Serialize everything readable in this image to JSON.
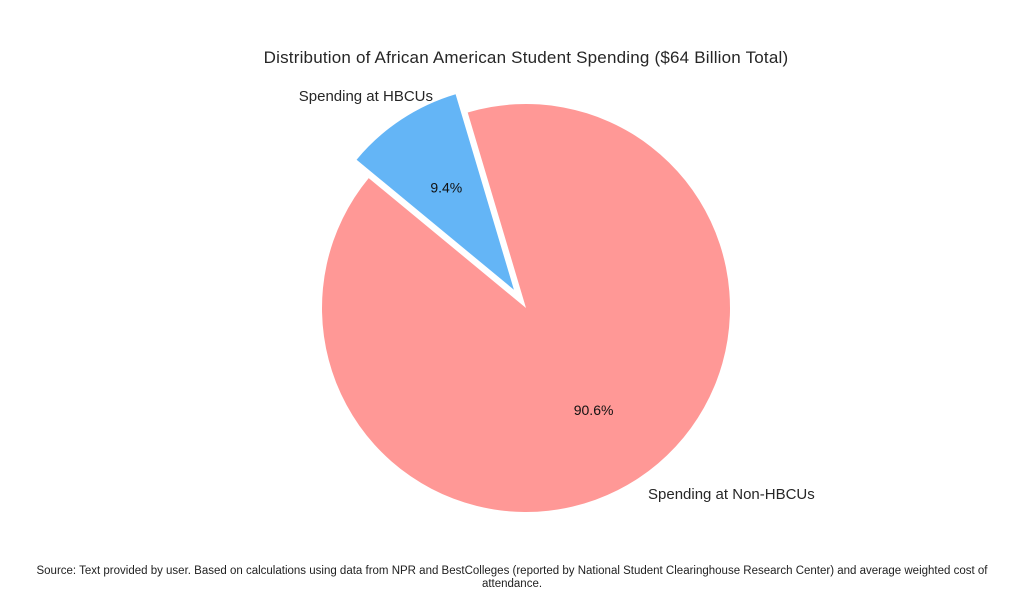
{
  "chart_data": {
    "type": "pie",
    "title": "Distribution of African American Student Spending ($64 Billion Total)",
    "slices": [
      {
        "id": "hbcu",
        "label": "Spending at HBCUs",
        "value": 9.4,
        "percent_label": "9.4%",
        "color": "#64B5F6",
        "pulled": true
      },
      {
        "id": "non-hbcu",
        "label": "Spending at Non-HBCUs",
        "value": 90.6,
        "percent_label": "90.6%",
        "color": "#FF9896",
        "pulled": false
      }
    ],
    "legend": "none",
    "label_position": "outside",
    "source_note": "Source: Text provided by user. Based on calculations using data from NPR and BestColleges (reported by National Student Clearinghouse Research Center) and average weighted cost of attendance."
  },
  "colors": {
    "background": "#ffffff",
    "text": "#262626"
  }
}
